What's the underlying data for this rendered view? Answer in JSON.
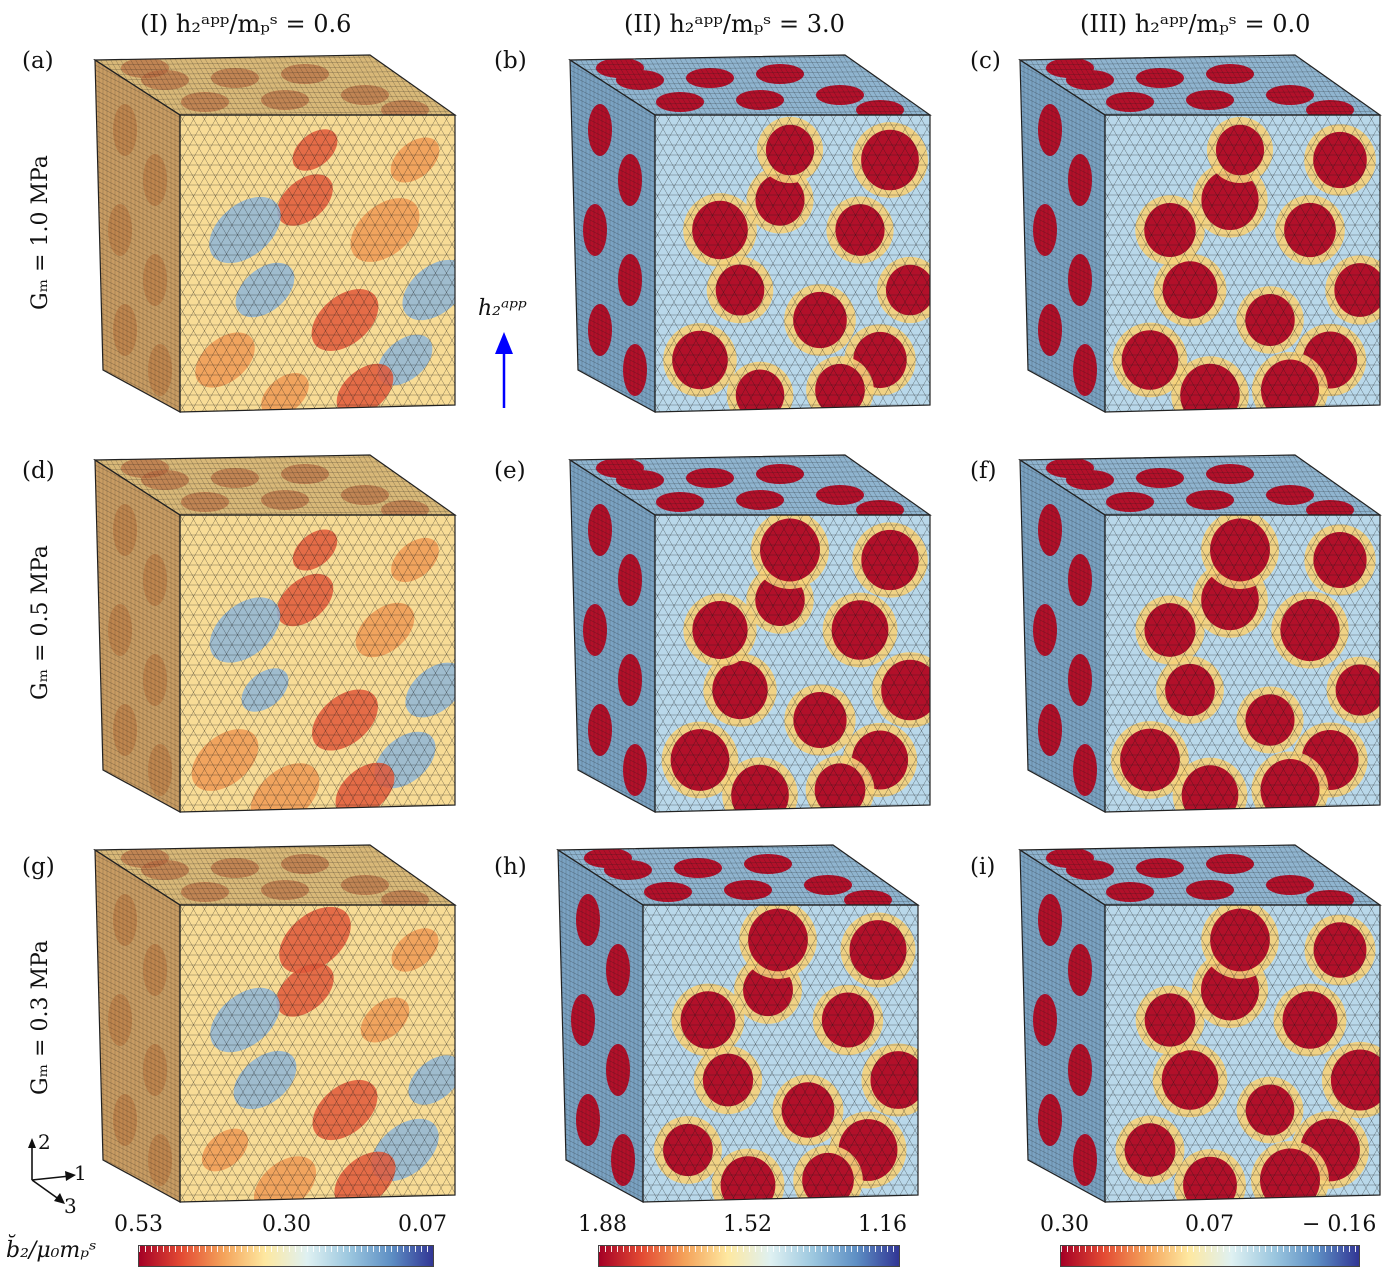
{
  "column_titles": [
    {
      "roman": "(I)",
      "ratio_text": "h₂ᵃᵖᵖ/mₚˢ = 0.6"
    },
    {
      "roman": "(II)",
      "ratio_text": "h₂ᵃᵖᵖ/mₚˢ = 3.0"
    },
    {
      "roman": "(III)",
      "ratio_text": "h₂ᵃᵖᵖ/mₚˢ = 0.0"
    }
  ],
  "row_labels": [
    "Gₘ = 1.0 MPa",
    "Gₘ = 0.5 MPa",
    "Gₘ = 0.3 MPa"
  ],
  "panel_labels": [
    "(a)",
    "(b)",
    "(c)",
    "(d)",
    "(e)",
    "(f)",
    "(g)",
    "(h)",
    "(i)"
  ],
  "applied_field_arrow": {
    "label": "h₂ᵃᵖᵖ",
    "color": "#0000ff"
  },
  "axes_triad": {
    "axis_up": "2",
    "axis_right": "1",
    "axis_diag": "3"
  },
  "colorbar_quantity": "b̆₂/μ₀mₚˢ",
  "colorbars": [
    {
      "ticks": [
        "0.53",
        "0.30",
        "0.07"
      ]
    },
    {
      "ticks": [
        "1.88",
        "1.52",
        "1.16"
      ]
    },
    {
      "ticks": [
        "0.30",
        "0.07",
        "− 0.16"
      ]
    }
  ],
  "colormap": [
    "#a50026",
    "#e34a33",
    "#f4a25a",
    "#fee8a0",
    "#dff1f2",
    "#9cc7df",
    "#5e8fc4",
    "#313695"
  ],
  "mesh_color": "#1a1a1a"
}
